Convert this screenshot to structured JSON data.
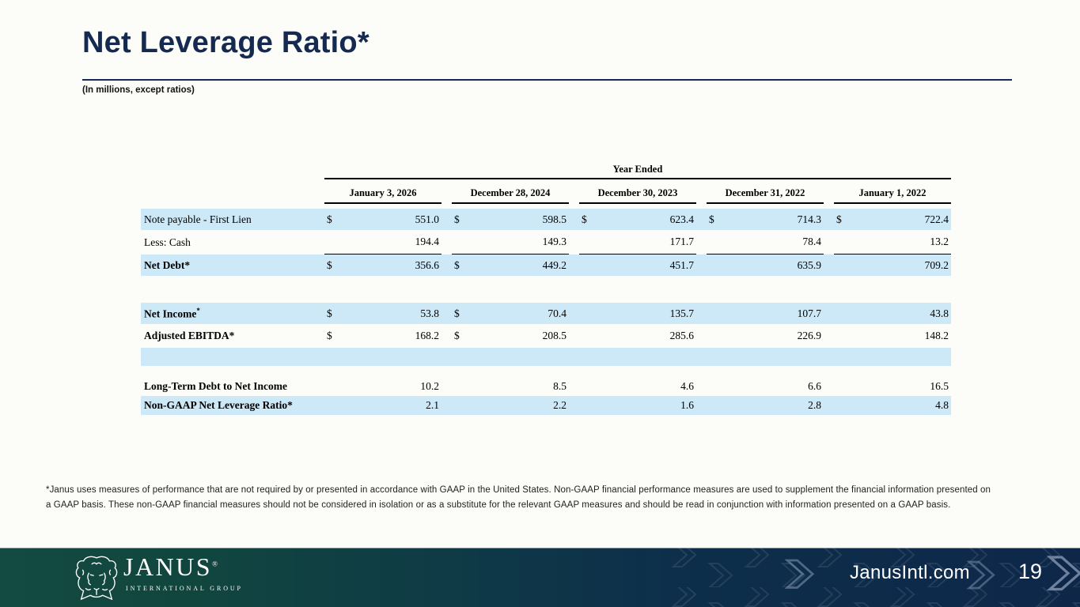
{
  "slide": {
    "title": "Net Leverage Ratio*",
    "subtitle": "(In millions, except ratios)",
    "footnote_line1": "*Janus uses measures of performance that are not required by or presented in accordance with GAAP in the United States. Non-GAAP financial performance measures are used to supplement the financial information presented on",
    "footnote_line2": "a GAAP basis. These non-GAAP financial measures should not be considered in isolation or as a substitute for the relevant GAAP measures and should be read in conjunction with information presented on a GAAP basis."
  },
  "table": {
    "group_header": "Year Ended",
    "columns": [
      "January 3, 2026",
      "December 28, 2024",
      "December 30, 2023",
      "December 31, 2022",
      "January 1, 2022"
    ],
    "rows": [
      {
        "kind": "data",
        "label": "Note payable - First Lien",
        "bold": false,
        "bg": "blue",
        "dollars": [
          true,
          true,
          true,
          true,
          true
        ],
        "values": [
          "551.0",
          "598.5",
          "623.4",
          "714.3",
          "722.4"
        ]
      },
      {
        "kind": "data",
        "label": "Less: Cash",
        "bold": false,
        "bg": "white",
        "underline": true,
        "values": [
          "194.4",
          "149.3",
          "171.7",
          "78.4",
          "13.2"
        ]
      },
      {
        "kind": "data",
        "label": "Net Debt*",
        "bold": true,
        "bg": "blue",
        "dollars": [
          true,
          true,
          false,
          false,
          false
        ],
        "values": [
          "356.6",
          "449.2",
          "451.7",
          "635.9",
          "709.2"
        ]
      },
      {
        "kind": "spacer-lg"
      },
      {
        "kind": "data",
        "label": "Net Income",
        "label_sup": "*",
        "bold": true,
        "bg": "blue",
        "dollars": [
          true,
          true,
          false,
          false,
          false
        ],
        "values": [
          "53.8",
          "70.4",
          "135.7",
          "107.7",
          "43.8"
        ]
      },
      {
        "kind": "data",
        "label": "Adjusted EBITDA*",
        "bold": true,
        "bg": "white",
        "dollars": [
          true,
          true,
          false,
          false,
          false
        ],
        "values": [
          "168.2",
          "208.5",
          "285.6",
          "226.9",
          "148.2"
        ]
      },
      {
        "kind": "blank"
      },
      {
        "kind": "spacer-sm"
      },
      {
        "kind": "data",
        "label": "Long-Term Debt to Net Income",
        "bold": true,
        "bg": "white",
        "values": [
          "10.2",
          "8.5",
          "4.6",
          "6.6",
          "16.5"
        ]
      },
      {
        "kind": "data",
        "label": "Non-GAAP Net Leverage Ratio*",
        "bold": true,
        "bg": "blue",
        "values": [
          "2.1",
          "2.2",
          "1.6",
          "2.8",
          "4.8"
        ]
      }
    ]
  },
  "footer": {
    "logo_word": "JANUS",
    "logo_reg": "®",
    "logo_sub": "INTERNATIONAL GROUP",
    "website": "JanusIntl.com",
    "page_number": "19"
  },
  "colors": {
    "accent_navy": "#16294e",
    "row_blue": "#cde9f7",
    "footer_green": "#134a41",
    "footer_navy": "#0e2749",
    "table_text": "#000000"
  }
}
